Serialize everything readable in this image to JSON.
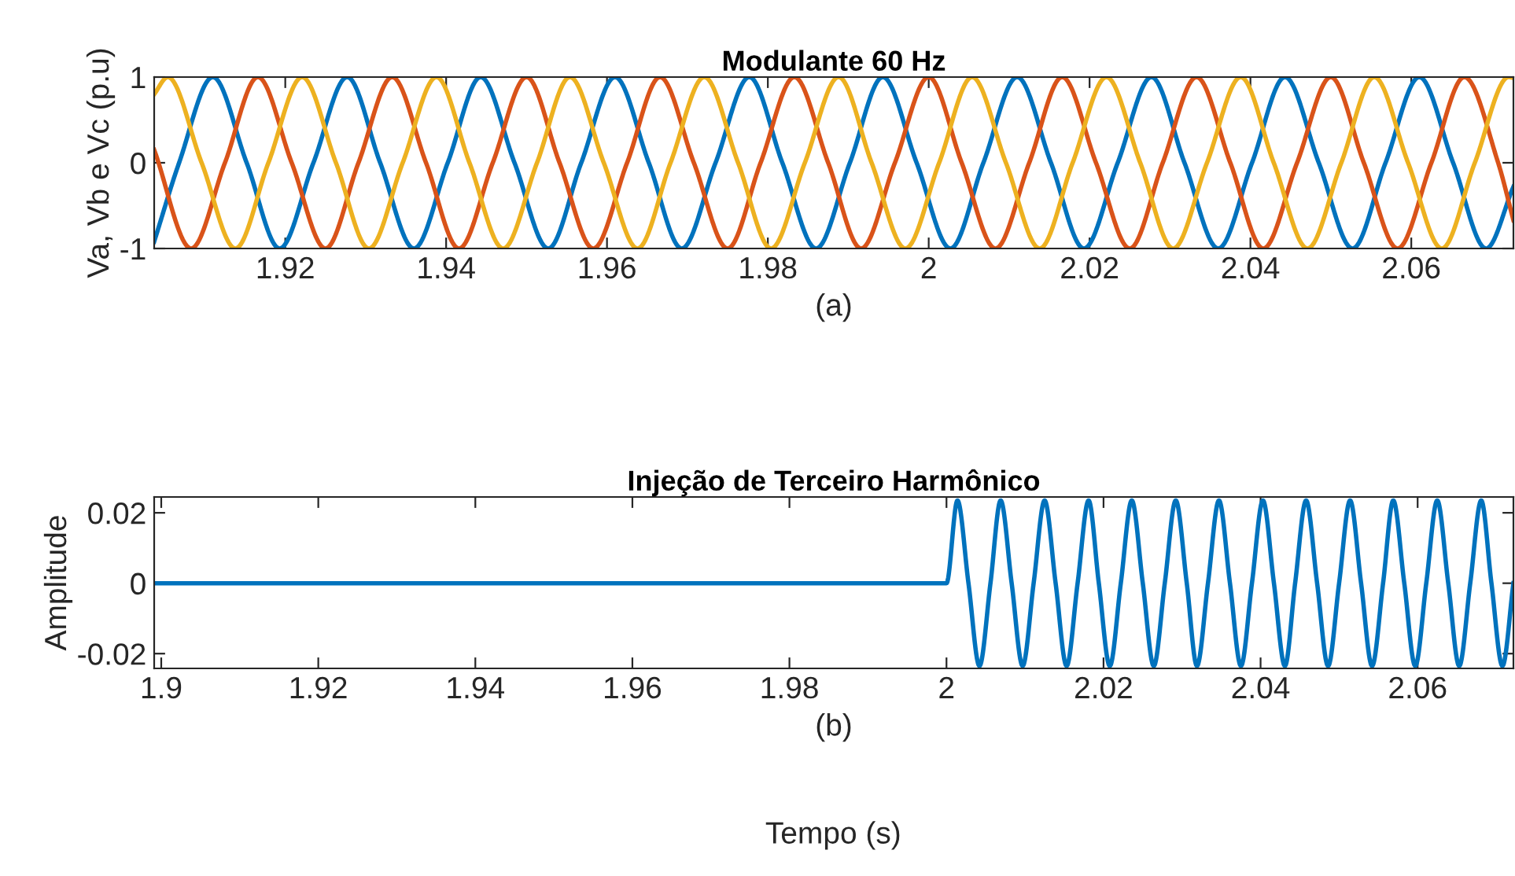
{
  "chart_data": [
    {
      "type": "line",
      "title": "Modulante 60 Hz",
      "xlabel": "(a)",
      "ylabel": "Va, Vb e Vc (p.u)",
      "xlim": [
        1.9037,
        2.0727
      ],
      "ylim": [
        -1,
        1
      ],
      "xticks": [
        1.92,
        1.94,
        1.96,
        1.98,
        2,
        2.02,
        2.04,
        2.06
      ],
      "yticks": [
        -1,
        0,
        1
      ],
      "series": [
        {
          "color": "#0072bd",
          "x": [
            1.9037,
            1.9068,
            1.911,
            1.9152,
            1.9193,
            1.9235,
            1.9277,
            1.9318,
            1.936,
            1.9402,
            1.9443,
            1.9485,
            1.9527,
            1.9568,
            1.961,
            1.9652,
            1.9693,
            1.9735,
            1.9777,
            1.9818,
            1.986,
            1.9902,
            1.9943,
            1.9985,
            2.0027,
            2.0068,
            2.011,
            2.0152,
            2.0193,
            2.0235,
            2.0277,
            2.0318,
            2.036,
            2.0402,
            2.0443,
            2.0485,
            2.0527,
            2.0568,
            2.061,
            2.0652,
            2.0693,
            2.0727
          ],
          "values": [
            -0.92,
            0,
            1,
            0,
            -1,
            0,
            1,
            0,
            -1,
            0,
            1,
            0,
            -1,
            0,
            1,
            0,
            -1,
            0,
            1,
            0,
            -1,
            0,
            1,
            0,
            -1,
            0,
            1,
            0,
            -1,
            0,
            1,
            0,
            -1,
            0,
            1,
            0,
            -1,
            0,
            1,
            0,
            -1,
            -0.28
          ]
        },
        {
          "color": "#d95319",
          "x": [
            1.9037,
            1.9083,
            1.9125,
            1.9166,
            1.9208,
            1.925,
            1.9291,
            1.9333,
            1.9375,
            1.9416,
            1.9458,
            1.95,
            1.9541,
            1.9583,
            1.9625,
            1.9666,
            1.9708,
            1.975,
            1.9791,
            1.9833,
            1.9875,
            1.9916,
            1.9958,
            2.0,
            2.0041,
            2.0083,
            2.0125,
            2.0166,
            2.0208,
            2.025,
            2.0291,
            2.0333,
            2.0375,
            2.0416,
            2.0458,
            2.05,
            2.0541,
            2.0583,
            2.0625,
            2.0666,
            2.0708,
            2.0727
          ],
          "values": [
            0.15,
            -1,
            0,
            1,
            0,
            -1,
            0,
            1,
            0,
            -1,
            0,
            1,
            0,
            -1,
            0,
            1,
            0,
            -1,
            0,
            1,
            0,
            -1,
            0,
            1,
            0,
            -1,
            0,
            1,
            0,
            -1,
            0,
            1,
            0,
            -1,
            0,
            1,
            0,
            -1,
            0,
            1,
            0,
            -0.67
          ]
        },
        {
          "color": "#edb120",
          "x": [
            1.9037,
            1.9054,
            1.9096,
            1.9138,
            1.9179,
            1.9221,
            1.9263,
            1.9304,
            1.9346,
            1.9388,
            1.9429,
            1.9471,
            1.9513,
            1.9554,
            1.9596,
            1.9638,
            1.9679,
            1.9721,
            1.9763,
            1.9804,
            1.9846,
            1.9888,
            1.9929,
            1.9971,
            2.0013,
            2.0054,
            2.0096,
            2.0138,
            2.0179,
            2.0221,
            2.0263,
            2.0304,
            2.0346,
            2.0388,
            2.0429,
            2.0471,
            2.0513,
            2.0554,
            2.0596,
            2.0638,
            2.0679,
            2.0721,
            2.0727
          ],
          "values": [
            0.8,
            1,
            0,
            -1,
            0,
            1,
            0,
            -1,
            0,
            1,
            0,
            -1,
            0,
            1,
            0,
            -1,
            0,
            1,
            0,
            -1,
            0,
            1,
            0,
            -1,
            0,
            1,
            0,
            -1,
            0,
            1,
            0,
            -1,
            0,
            1,
            0,
            -1,
            0,
            1,
            0,
            -1,
            0,
            1,
            0.99
          ]
        }
      ]
    },
    {
      "type": "line",
      "title": "Injeção de Terceiro Harmônico",
      "xlabel": "(b)",
      "ylabel": "Amplitude",
      "xlim": [
        1.8991,
        2.0722
      ],
      "ylim": [
        -0.0242,
        0.0245
      ],
      "xticks": [
        1.9,
        1.92,
        1.94,
        1.96,
        1.98,
        2,
        2.02,
        2.04,
        2.06
      ],
      "yticks": [
        -0.02,
        0,
        0.02
      ],
      "annotations": [
        "Tempo (s)"
      ],
      "series": [
        {
          "color": "#0072bd",
          "x": [
            1.8991,
            2.0,
            2.0014,
            2.0028,
            2.0042,
            2.0056,
            2.0069,
            2.0083,
            2.0097,
            2.0111,
            2.0125,
            2.0139,
            2.0153,
            2.0167,
            2.0181,
            2.0194,
            2.0208,
            2.0222,
            2.0236,
            2.025,
            2.0264,
            2.0278,
            2.0292,
            2.0306,
            2.0319,
            2.0333,
            2.0347,
            2.0361,
            2.0375,
            2.0389,
            2.0403,
            2.0417,
            2.0431,
            2.0444,
            2.0458,
            2.0472,
            2.0486,
            2.05,
            2.0514,
            2.0528,
            2.0542,
            2.0556,
            2.0569,
            2.0583,
            2.0597,
            2.0611,
            2.0625,
            2.0639,
            2.0653,
            2.0667,
            2.0681,
            2.0694,
            2.0708,
            2.0722
          ],
          "values": [
            0,
            0,
            0.0235,
            0,
            -0.0235,
            0,
            0.0235,
            0,
            -0.0235,
            0,
            0.0235,
            0,
            -0.0235,
            0,
            0.0235,
            0,
            -0.0235,
            0,
            0.0235,
            0,
            -0.0235,
            0,
            0.0235,
            0,
            -0.0235,
            0,
            0.0235,
            0,
            -0.0235,
            0,
            0.0235,
            0,
            -0.0235,
            0,
            0.0235,
            0,
            -0.0235,
            0,
            0.0235,
            0,
            -0.0235,
            0,
            0.0235,
            0,
            -0.0235,
            0,
            0.0235,
            0,
            -0.0235,
            0,
            0.0235,
            0,
            -0.0235,
            0
          ]
        }
      ]
    }
  ]
}
